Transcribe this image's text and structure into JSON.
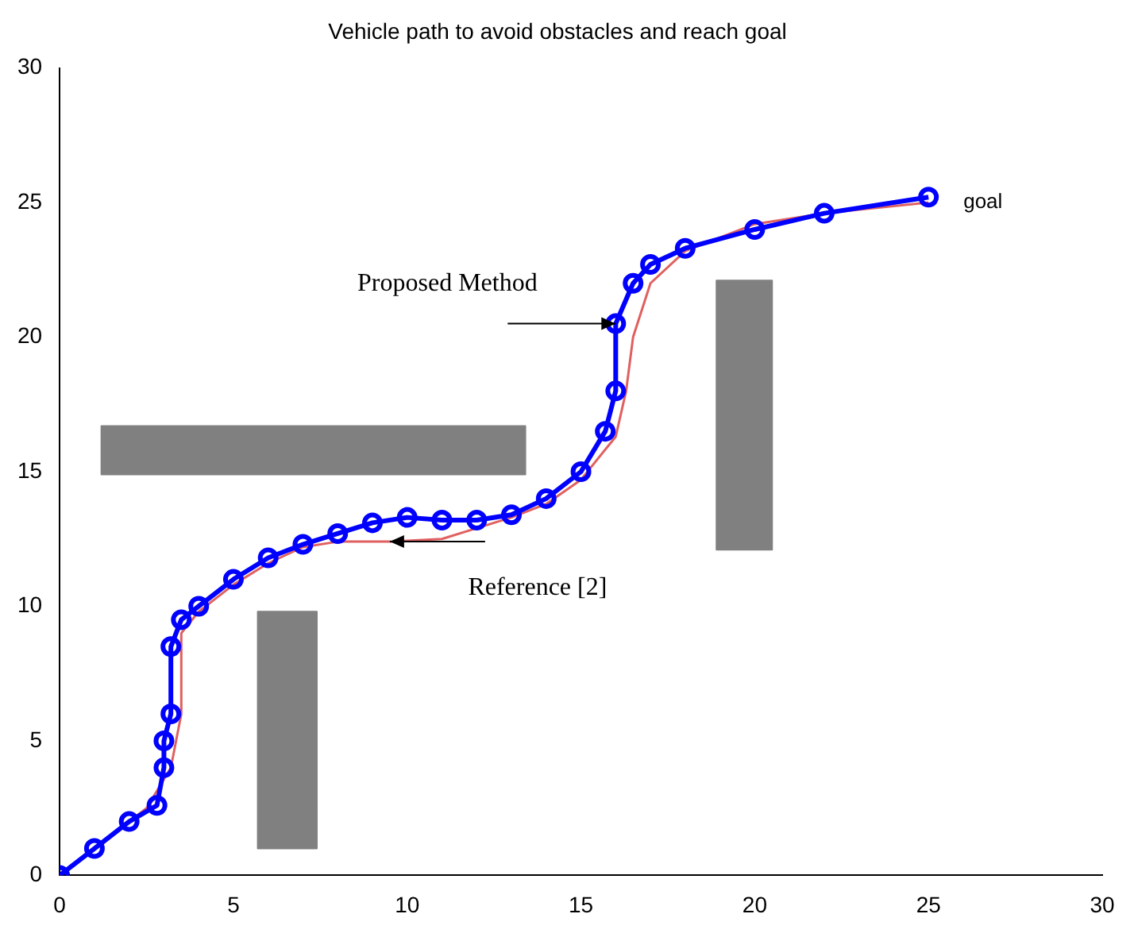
{
  "chart_data": {
    "type": "line",
    "title": "Vehicle path to avoid obstacles and reach goal",
    "xlim": [
      0,
      30
    ],
    "ylim": [
      0,
      30
    ],
    "xticks": [
      0,
      5,
      10,
      15,
      20,
      25,
      30
    ],
    "yticks": [
      0,
      5,
      10,
      15,
      20,
      25,
      30
    ],
    "grid": false,
    "legend": false,
    "series": [
      {
        "type": "area",
        "color": "#808080",
        "x": [
          1.2,
          13.4,
          13.4,
          1.2,
          1.2
        ],
        "values": [
          14.9,
          14.9,
          16.7,
          16.7,
          14.9
        ]
      },
      {
        "type": "area",
        "color": "#808080",
        "x": [
          5.7,
          7.4,
          7.4,
          5.7,
          5.7
        ],
        "values": [
          1,
          1,
          9.8,
          9.8,
          1
        ]
      },
      {
        "type": "area",
        "color": "#808080",
        "x": [
          18.9,
          20.5,
          20.5,
          18.9,
          18.9
        ],
        "values": [
          12.1,
          12.1,
          22.1,
          22.1,
          12.1
        ]
      },
      {
        "type": "line",
        "color": "#0000ff",
        "marker": "circle",
        "x": [
          0,
          1,
          2,
          2.8,
          3,
          3,
          3.2,
          3.2,
          3.5,
          4,
          5,
          6,
          7,
          8,
          9,
          10,
          11,
          12,
          13,
          14,
          15,
          15.7,
          16,
          16,
          16.5,
          17,
          18,
          20,
          22,
          25
        ],
        "values": [
          0,
          1,
          2,
          2.6,
          4,
          5,
          6,
          8.5,
          9.5,
          10,
          11,
          11.8,
          12.3,
          12.7,
          13.1,
          13.3,
          13.2,
          13.2,
          13.4,
          14,
          15,
          16.5,
          18,
          20.5,
          22,
          22.7,
          23.3,
          24,
          24.6,
          25.2
        ]
      },
      {
        "type": "line",
        "color": "#e06060",
        "marker": "none",
        "x": [
          0,
          2.5,
          3.2,
          3.5,
          3.5,
          4,
          5,
          6,
          7,
          8,
          9.5,
          11,
          12,
          13,
          14,
          15,
          16,
          16.3,
          16.5,
          17,
          18,
          20,
          22,
          25
        ],
        "values": [
          0,
          2.5,
          4,
          6,
          9,
          9.8,
          10.8,
          11.6,
          12.2,
          12.4,
          12.4,
          12.5,
          12.9,
          13.3,
          13.8,
          14.7,
          16.3,
          18,
          20,
          22,
          23.2,
          24.2,
          24.6,
          25
        ]
      }
    ],
    "annotations": [
      {
        "text": "Proposed Method",
        "x": 16,
        "y": 20.5
      },
      {
        "text": "Reference [2]",
        "x": 9.5,
        "y": 12.4
      },
      {
        "text": "goal",
        "x": 25,
        "y": 25
      }
    ]
  }
}
